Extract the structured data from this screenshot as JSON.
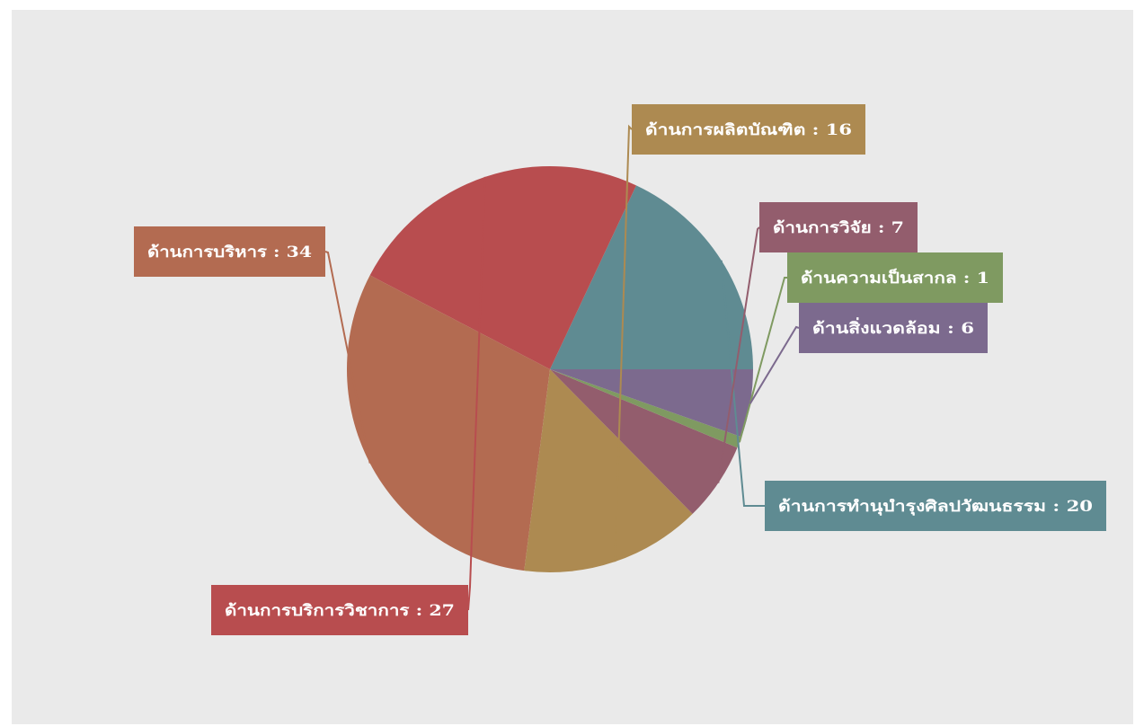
{
  "chart_data": {
    "type": "pie",
    "title": "",
    "start_direction": "east",
    "rotation": "counterclockwise",
    "slices": [
      {
        "label": "ด้านการทำนุบำรุงศิลปวัฒนธรรม",
        "value": 20,
        "text": "ด้านการทำนุบำรุงศิลปวัฒนธรรม : 20",
        "color": "#5f8b92"
      },
      {
        "label": "ด้านการบริการวิชาการ",
        "value": 27,
        "text": "ด้านการบริการวิชาการ : 27",
        "color": "#b84d4f"
      },
      {
        "label": "ด้านการบริหาร",
        "value": 34,
        "text": "ด้านการบริหาร : 34",
        "color": "#b36b51"
      },
      {
        "label": "ด้านการผลิตบัณฑิต",
        "value": 16,
        "text": "ด้านการผลิตบัณฑิต : 16",
        "color": "#ad8a51"
      },
      {
        "label": "ด้านการวิจัย",
        "value": 7,
        "text": "ด้านการวิจัย : 7",
        "color": "#935d6d"
      },
      {
        "label": "ด้านความเป็นสากล",
        "value": 1,
        "text": "ด้านความเป็นสากล : 1",
        "color": "#7f9a61"
      },
      {
        "label": "ด้านสิ่งแวดล้อม",
        "value": 6,
        "text": "ด้านสิ่งแวดล้อม : 6",
        "color": "#7c6a8e"
      }
    ]
  }
}
